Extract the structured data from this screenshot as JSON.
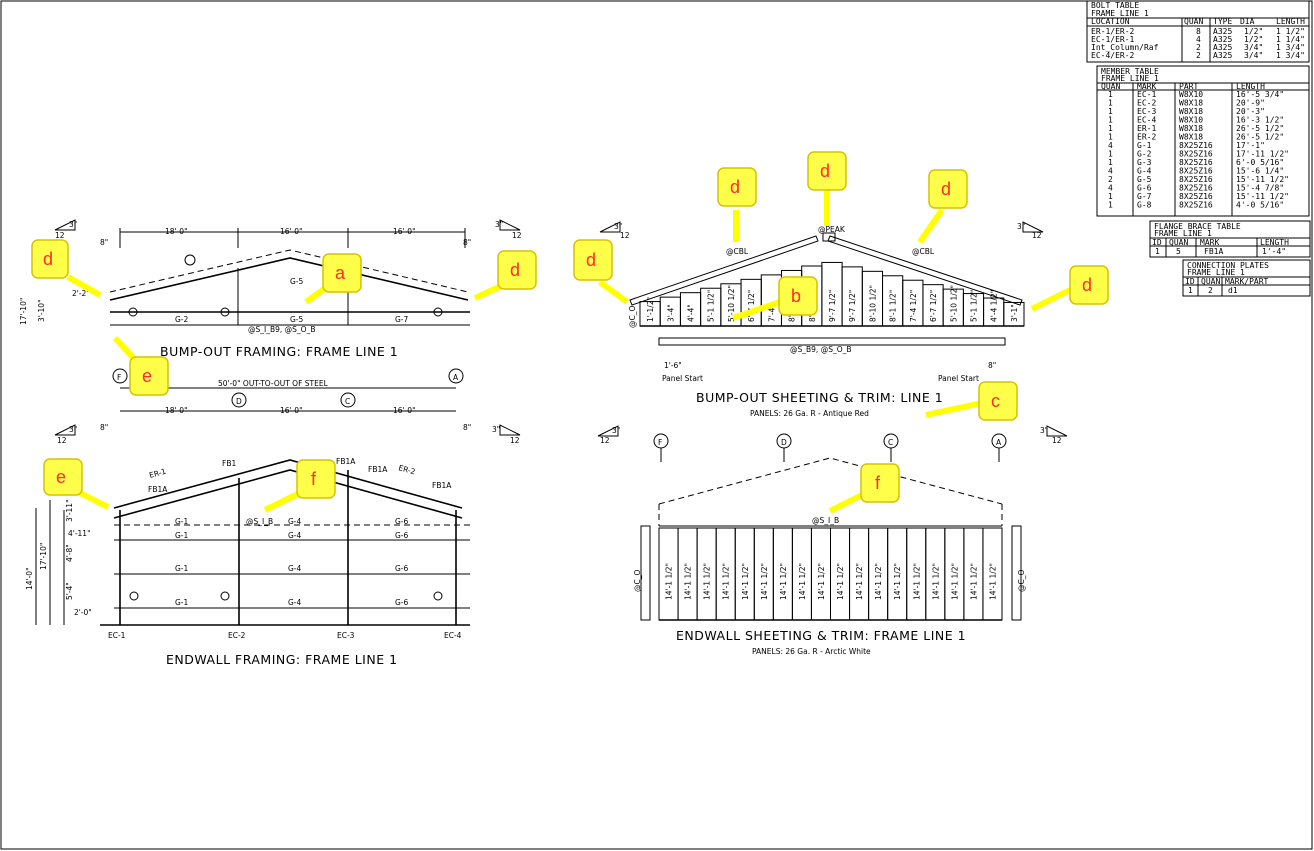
{
  "bolt_table": {
    "title": "BOLT TABLE",
    "subtitle": "FRAME LINE 1",
    "headers": [
      "LOCATION",
      "QUAN",
      "TYPE",
      "DIA",
      "LENGTH"
    ],
    "rows": [
      [
        "ER-1/ER-2",
        "8",
        "A325",
        "1/2\"",
        "1 1/2\""
      ],
      [
        "EC-1/ER-1",
        "4",
        "A325",
        "1/2\"",
        "1 1/4\""
      ],
      [
        "Int_Column/Raf",
        "2",
        "A325",
        "3/4\"",
        "1 3/4\""
      ],
      [
        "EC-4/ER-2",
        "2",
        "A325",
        "3/4\"",
        "1 3/4\""
      ]
    ]
  },
  "member_table": {
    "title": "MEMBER TABLE",
    "subtitle": "FRAME LINE 1",
    "headers": [
      "QUAN",
      "MARK",
      "PART",
      "LENGTH"
    ],
    "rows": [
      [
        "1",
        "EC-1",
        "W8X10",
        "16'-5 3/4\""
      ],
      [
        "1",
        "EC-2",
        "W8X18",
        "20'-9\""
      ],
      [
        "1",
        "EC-3",
        "W8X18",
        "20'-3\""
      ],
      [
        "1",
        "EC-4",
        "W8X10",
        "16'-3 1/2\""
      ],
      [
        "1",
        "ER-1",
        "W8X18",
        "26'-5 1/2\""
      ],
      [
        "1",
        "ER-2",
        "W8X18",
        "26'-5 1/2\""
      ],
      [
        "4",
        "G-1",
        "8X25Z16",
        "17'-1\""
      ],
      [
        "1",
        "G-2",
        "8X25Z16",
        "17'-11 1/2\""
      ],
      [
        "1",
        "G-3",
        "8X25Z16",
        "6'-0 5/16\""
      ],
      [
        "4",
        "G-4",
        "8X25Z16",
        "15'-6 1/4\""
      ],
      [
        "2",
        "G-5",
        "8X25Z16",
        "15'-11 1/2\""
      ],
      [
        "4",
        "G-6",
        "8X25Z16",
        "15'-4 7/8\""
      ],
      [
        "1",
        "G-7",
        "8X25Z16",
        "15'-11 1/2\""
      ],
      [
        "1",
        "G-8",
        "8X25Z16",
        "4'-0 5/16\""
      ]
    ]
  },
  "flange_brace_table": {
    "title": "FLANGE BRACE TABLE",
    "subtitle": "FRAME LINE 1",
    "headers": [
      "ID",
      "QUAN",
      "MARK",
      "LENGTH"
    ],
    "rows": [
      [
        "1",
        "5",
        "FB1A",
        "1'-4\""
      ]
    ]
  },
  "connection_plates": {
    "title": "CONNECTION PLATES",
    "subtitle": "FRAME LINE 1",
    "headers": [
      "ID",
      "QUAN",
      "MARK/PART"
    ],
    "rows": [
      [
        "1",
        "2",
        "d1"
      ]
    ]
  },
  "drawings": {
    "bumpout_framing": {
      "title": "BUMP-OUT FRAMING: FRAME LINE 1",
      "dims": [
        "18'-0\"",
        "16'-0\"",
        "16'-0\"",
        "8\"",
        "8\""
      ],
      "girts": [
        "G-2",
        "G-5",
        "G-7",
        "G-5"
      ],
      "vert_dims": [
        "17'-10\"",
        "3'-10\"",
        "3'-10\"",
        "2'-2\""
      ],
      "note": "@S_I_B9, @S_O_B",
      "pitch": "3\"",
      "pitch_run": "12"
    },
    "bumpout_sheeting": {
      "title": "BUMP-OUT SHEETING & TRIM: LINE 1",
      "panels": "PANELS: 26 Ga. R - Antique Red",
      "trim_labels": [
        "@CBL",
        "@PEAK",
        "@CBL",
        "@C_O"
      ],
      "panel_lengths": [
        "1'-1/2\"",
        "3'-4\"",
        "4'-4\"",
        "5'-1 1/2\"",
        "5'-10 1/2\"",
        "6'-7 1/2\"",
        "7'-4\"",
        "8'-1 1/2\"",
        "8'-10 1/2\"",
        "9'-7 1/2\"",
        "9'-7 1/2\"",
        "8'-10 1/2\"",
        "8'-1 1/2\"",
        "7'-4 1/2\"",
        "6'-7 1/2\"",
        "5'-10 1/2\"",
        "5'-1 1/2\"",
        "4'-4 1/2\"",
        "3'-1\""
      ],
      "note": "@S_B9, @S_O_B",
      "panel_start": "Panel Start",
      "dim_left": "1'-6\"",
      "dim_right": "8\""
    },
    "endwall_framing": {
      "title": "ENDWALL FRAMING: FRAME LINE 1",
      "overall": "50'-0\" OUT-TO-OUT OF STEEL",
      "dims": [
        "18'-0\"",
        "16'-0\"",
        "16'-0\"",
        "8\"",
        "8\""
      ],
      "grid": [
        "F",
        "D",
        "C",
        "A"
      ],
      "rafters": [
        "ER-1",
        "ER-2"
      ],
      "braces": [
        "FB1A",
        "FB1",
        "FB1A",
        "FB1A",
        "FB1A"
      ],
      "girts": [
        "G-1",
        "G-4",
        "G-6"
      ],
      "columns": [
        "EC-1",
        "EC-2",
        "EC-3",
        "EC-4"
      ],
      "vert_dims": [
        "14'-0\"",
        "17'-10\"",
        "3'-11\"",
        "4'-11\"",
        "4'-8\"",
        "5'-4\"",
        "2'-0\""
      ],
      "note": "@S_I_B"
    },
    "endwall_sheeting": {
      "title": "ENDWALL SHEETING & TRIM: FRAME LINE 1",
      "panels": "PANELS: 26 Ga. R - Arctic White",
      "grid": [
        "F",
        "D",
        "C",
        "A"
      ],
      "panel_length": "14'-1 1/2\"",
      "note": "@S_I_B",
      "trim": "@C_O"
    }
  },
  "callouts": [
    "a",
    "b",
    "c",
    "d",
    "e",
    "f"
  ],
  "colors": {
    "callout_fill": "#ffff4a",
    "callout_text": "#ff2a2a",
    "arrow": "#ffff00"
  }
}
